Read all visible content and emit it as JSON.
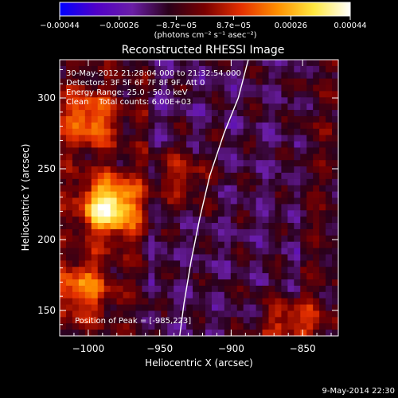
{
  "chart_data": {
    "type": "heatmap",
    "title": "Reconstructed RHESSI Image",
    "xlabel": "Heliocentric X (arcsec)",
    "ylabel": "Heliocentric Y (arcsec)",
    "xlim": [
      -1020,
      -825
    ],
    "ylim": [
      132,
      327
    ],
    "x_ticks": [
      -1000,
      -950,
      -900,
      -850
    ],
    "y_ticks": [
      150,
      200,
      250,
      300
    ],
    "x_tick_labels": [
      "−1000",
      "−950",
      "−900",
      "−850"
    ],
    "y_tick_labels": [
      "150",
      "200",
      "250",
      "300"
    ],
    "colorbar": {
      "range": [
        -0.00044,
        0.00044
      ],
      "tick_values": [
        -0.00044,
        -0.00026,
        -8.7e-05,
        8.7e-05,
        0.00026,
        0.00044
      ],
      "tick_labels": [
        "−0.00044",
        "−0.00026",
        "−8.7e−05",
        "8.7e−05",
        "0.00026",
        "0.00044"
      ],
      "unit_label": "(photons cm⁻² s⁻¹ asec⁻²)",
      "colormap": [
        "#0000ff",
        "#5000c8",
        "#6a1ea6",
        "#2a001a",
        "#7a0000",
        "#e53000",
        "#ff9000",
        "#ffe840",
        "#ffffff"
      ]
    },
    "info_lines": [
      "30-May-2012 21:28:04.000 to 21:32:54.000",
      "Detectors: 3F 5F 6F 7F 8F 9F, Att 0",
      "Energy Range: 25.0 - 50.0 keV",
      "Clean    Total counts: 6.00E+03"
    ],
    "peak_label": "Position of Peak = [-985,223]",
    "peak": [
      -985,
      223
    ],
    "peak_value": 0.00044,
    "secondary_sources": [
      {
        "x": -1000,
        "y": 285,
        "value": 0.00022
      },
      {
        "x": -1005,
        "y": 165,
        "value": 0.0002
      },
      {
        "x": -860,
        "y": 140,
        "value": 0.00016
      },
      {
        "x": -935,
        "y": 245,
        "value": 0.0001
      }
    ],
    "limb_curve": [
      [
        -888,
        327
      ],
      [
        -895,
        300
      ],
      [
        -905,
        275
      ],
      [
        -915,
        245
      ],
      [
        -922,
        215
      ],
      [
        -928,
        185
      ],
      [
        -933,
        155
      ],
      [
        -936,
        132
      ]
    ]
  },
  "footer": {
    "timestamp": "9-May-2014 22:30"
  }
}
